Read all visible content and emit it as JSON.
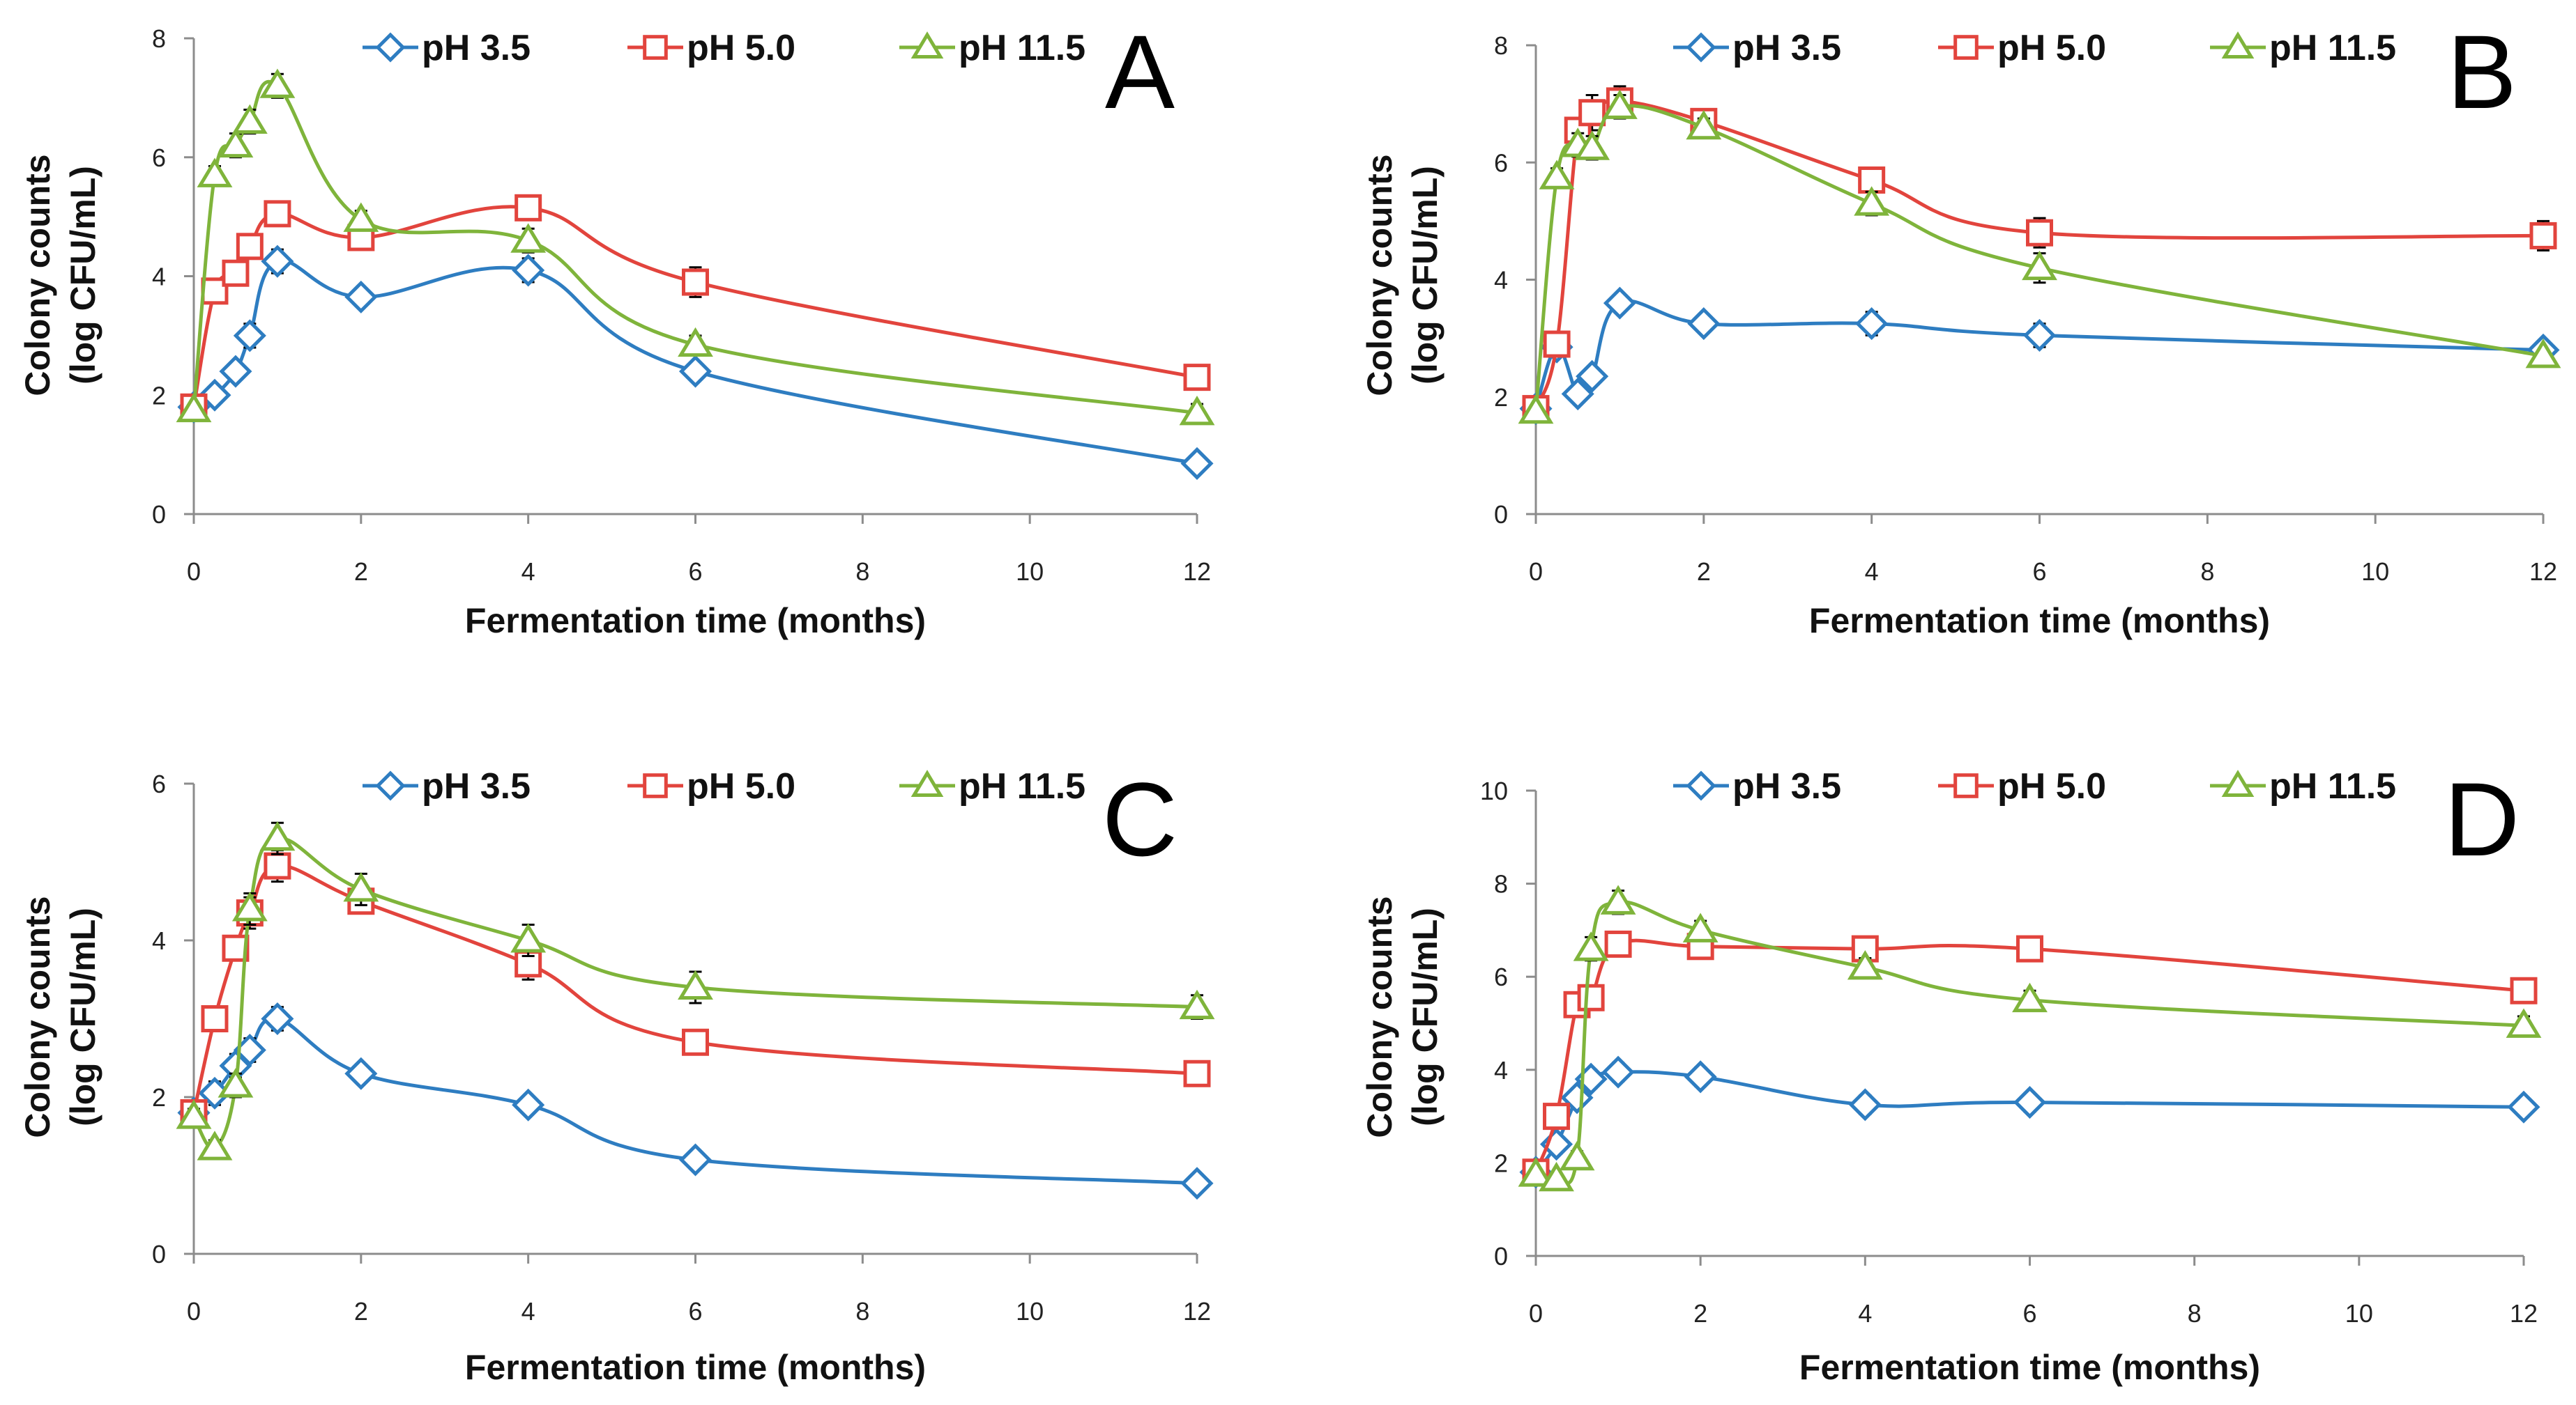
{
  "colors": {
    "ph35": "#2e7dc1",
    "ph50": "#e2443d",
    "ph115": "#7fb43b",
    "axis": "#8c8c8c",
    "errorbar": "#000000"
  },
  "chart_data": [
    {
      "type": "line",
      "panel": "A",
      "xlabel": "Fermentation time (months)",
      "ylabel_line1": "Colony counts",
      "ylabel_line2": "(log CFU/mL)",
      "xlim": [
        0,
        12
      ],
      "ylim": [
        0,
        8
      ],
      "xticks": [
        0,
        2,
        4,
        6,
        8,
        10,
        12
      ],
      "yticks": [
        0,
        2,
        4,
        6,
        8
      ],
      "x": [
        0,
        0.25,
        0.5,
        0.67,
        1,
        2,
        4,
        6,
        12
      ],
      "series": [
        {
          "name": "pH 3.5",
          "marker": "diamond",
          "color": "#2e7dc1",
          "values": [
            1.8,
            2.0,
            2.4,
            3.0,
            4.25,
            3.65,
            4.1,
            2.4,
            0.85
          ],
          "errors": [
            0.1,
            0.15,
            0.15,
            0.2,
            0.2,
            0.15,
            0.2,
            0.15,
            0.1
          ]
        },
        {
          "name": "pH 5.0",
          "marker": "square",
          "color": "#e2443d",
          "values": [
            1.8,
            3.75,
            4.05,
            4.5,
            5.05,
            4.65,
            5.15,
            3.9,
            2.3
          ],
          "errors": [
            0.1,
            0.2,
            0.15,
            0.2,
            0.15,
            0.15,
            0.15,
            0.25,
            0.1
          ]
        },
        {
          "name": "pH 11.5",
          "marker": "triangle",
          "color": "#7fb43b",
          "values": [
            1.75,
            5.7,
            6.2,
            6.6,
            7.2,
            4.95,
            4.6,
            2.85,
            1.7
          ],
          "errors": [
            0.1,
            0.15,
            0.2,
            0.2,
            0.2,
            0.15,
            0.2,
            0.15,
            0.15
          ]
        }
      ]
    },
    {
      "type": "line",
      "panel": "B",
      "xlabel": "Fermentation time (months)",
      "ylabel_line1": "Colony counts",
      "ylabel_line2": "(log CFU/mL)",
      "xlim": [
        0,
        12
      ],
      "ylim": [
        0,
        8
      ],
      "xticks": [
        0,
        2,
        4,
        6,
        8,
        10,
        12
      ],
      "yticks": [
        0,
        2,
        4,
        6,
        8
      ],
      "x": [
        0,
        0.25,
        0.5,
        0.67,
        1,
        2,
        4,
        6,
        12
      ],
      "series": [
        {
          "name": "pH 3.5",
          "marker": "diamond",
          "color": "#2e7dc1",
          "values": [
            1.8,
            2.85,
            2.05,
            2.35,
            3.6,
            3.25,
            3.25,
            3.05,
            2.8
          ],
          "errors": [
            0.1,
            0.15,
            0.15,
            0.15,
            0.15,
            0.15,
            0.2,
            0.2,
            0.15
          ]
        },
        {
          "name": "pH 5.0",
          "marker": "square",
          "color": "#e2443d",
          "values": [
            1.8,
            2.9,
            6.55,
            6.85,
            7.05,
            6.7,
            5.7,
            4.8,
            4.75
          ],
          "errors": [
            0.1,
            0.1,
            0.2,
            0.3,
            0.25,
            0.15,
            0.2,
            0.25,
            0.25
          ]
        },
        {
          "name": "pH 11.5",
          "marker": "triangle",
          "color": "#7fb43b",
          "values": [
            1.75,
            5.75,
            6.3,
            6.25,
            6.95,
            6.6,
            5.3,
            4.2,
            2.7
          ],
          "errors": [
            0.1,
            0.15,
            0.2,
            0.2,
            0.2,
            0.15,
            0.2,
            0.25,
            0.1
          ]
        }
      ]
    },
    {
      "type": "line",
      "panel": "C",
      "xlabel": "Fermentation time (months)",
      "ylabel_line1": "Colony counts",
      "ylabel_line2": "(log CFU/mL)",
      "xlim": [
        0,
        12
      ],
      "ylim": [
        0,
        6
      ],
      "xticks": [
        0,
        2,
        4,
        6,
        8,
        10,
        12
      ],
      "yticks": [
        0,
        2,
        4,
        6
      ],
      "x": [
        0,
        0.25,
        0.5,
        0.67,
        1,
        2,
        4,
        6,
        12
      ],
      "series": [
        {
          "name": "pH 3.5",
          "marker": "diamond",
          "color": "#2e7dc1",
          "values": [
            1.8,
            2.05,
            2.4,
            2.6,
            3.0,
            2.3,
            1.9,
            1.2,
            0.9
          ],
          "errors": [
            0.1,
            0.15,
            0.15,
            0.15,
            0.15,
            0.1,
            0.1,
            0.1,
            0.1
          ]
        },
        {
          "name": "pH 5.0",
          "marker": "square",
          "color": "#e2443d",
          "values": [
            1.8,
            3.0,
            3.9,
            4.35,
            4.95,
            4.5,
            3.7,
            2.7,
            2.3
          ],
          "errors": [
            0.1,
            0.1,
            0.15,
            0.2,
            0.2,
            0.15,
            0.2,
            0.1,
            0.1
          ]
        },
        {
          "name": "pH 11.5",
          "marker": "triangle",
          "color": "#7fb43b",
          "values": [
            1.75,
            1.35,
            2.15,
            4.4,
            5.3,
            4.65,
            4.0,
            3.4,
            3.15
          ],
          "errors": [
            0.1,
            0.1,
            0.15,
            0.2,
            0.2,
            0.2,
            0.2,
            0.2,
            0.15
          ]
        }
      ]
    },
    {
      "type": "line",
      "panel": "D",
      "xlabel": "Fermentation time (months)",
      "ylabel_line1": "Colony counts",
      "ylabel_line2": "(log CFU/mL)",
      "xlim": [
        0,
        12
      ],
      "ylim": [
        0,
        10
      ],
      "xticks": [
        0,
        2,
        4,
        6,
        8,
        10,
        12
      ],
      "yticks": [
        0,
        2,
        4,
        6,
        8,
        10
      ],
      "x": [
        0,
        0.25,
        0.5,
        0.67,
        1,
        2,
        4,
        6,
        12
      ],
      "series": [
        {
          "name": "pH 3.5",
          "marker": "diamond",
          "color": "#2e7dc1",
          "values": [
            1.8,
            2.4,
            3.4,
            3.8,
            3.95,
            3.85,
            3.25,
            3.3,
            3.2
          ],
          "errors": [
            0.1,
            0.2,
            0.2,
            0.2,
            0.2,
            0.2,
            0.2,
            0.2,
            0.15
          ]
        },
        {
          "name": "pH 5.0",
          "marker": "square",
          "color": "#e2443d",
          "values": [
            1.8,
            3.0,
            5.4,
            5.55,
            6.7,
            6.65,
            6.6,
            6.6,
            5.7
          ],
          "errors": [
            0.1,
            0.15,
            0.2,
            0.2,
            0.15,
            0.15,
            0.15,
            0.15,
            0.15
          ]
        },
        {
          "name": "pH 11.5",
          "marker": "triangle",
          "color": "#7fb43b",
          "values": [
            1.75,
            1.65,
            2.1,
            6.6,
            7.6,
            7.0,
            6.2,
            5.5,
            4.95
          ],
          "errors": [
            0.1,
            0.1,
            0.15,
            0.25,
            0.25,
            0.2,
            0.2,
            0.2,
            0.2
          ]
        }
      ]
    }
  ]
}
